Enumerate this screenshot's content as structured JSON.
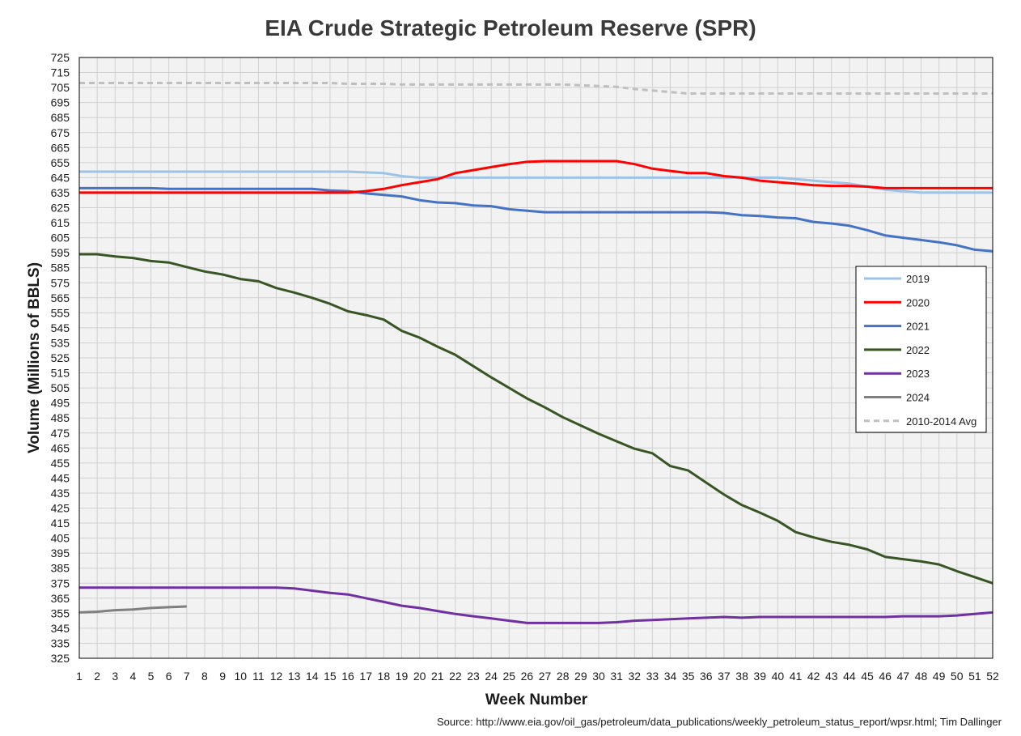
{
  "chart_data": {
    "type": "line",
    "title": "EIA Crude Strategic Petroleum Reserve (SPR)",
    "xlabel": "Week Number",
    "ylabel": "Volume (Millions of BBLS)",
    "source": "Source: http://www.eia.gov/oil_gas/petroleum/data_publications/weekly_petroleum_status_report/wpsr.html; Tim Dallinger",
    "xlim": [
      1,
      52
    ],
    "ylim": [
      325,
      725
    ],
    "ytick_step": 10,
    "grid": true,
    "legend_position": "right",
    "x": [
      1,
      2,
      3,
      4,
      5,
      6,
      7,
      8,
      9,
      10,
      11,
      12,
      13,
      14,
      15,
      16,
      17,
      18,
      19,
      20,
      21,
      22,
      23,
      24,
      25,
      26,
      27,
      28,
      29,
      30,
      31,
      32,
      33,
      34,
      35,
      36,
      37,
      38,
      39,
      40,
      41,
      42,
      43,
      44,
      45,
      46,
      47,
      48,
      49,
      50,
      51,
      52
    ],
    "series": [
      {
        "name": "2019",
        "color": "#9dc3e6",
        "dash": false,
        "values": [
          649,
          649,
          649,
          649,
          649,
          649,
          649,
          649,
          649,
          649,
          649,
          649,
          649,
          649,
          649,
          649,
          648.5,
          648,
          646,
          645,
          645,
          645,
          645,
          645,
          645,
          645,
          645,
          645,
          645,
          645,
          645,
          645,
          645,
          645,
          645,
          645,
          645,
          645,
          645,
          645,
          644,
          643,
          642,
          641,
          639,
          637,
          636,
          635,
          635,
          635,
          635,
          635
        ]
      },
      {
        "name": "2020",
        "color": "#ff0000",
        "dash": false,
        "values": [
          635,
          635,
          635,
          635,
          635,
          635,
          635,
          635,
          635,
          635,
          635,
          635,
          635,
          635,
          635,
          635,
          636,
          637.5,
          640,
          642,
          644,
          648,
          650,
          652,
          654,
          655.5,
          656,
          656,
          656,
          656,
          656,
          654,
          651,
          649.5,
          648,
          648,
          646,
          645,
          643,
          642,
          641,
          640,
          639.5,
          639.5,
          639,
          638,
          638,
          638,
          638,
          638,
          638,
          638
        ]
      },
      {
        "name": "2021",
        "color": "#4472c4",
        "dash": false,
        "values": [
          638,
          638,
          638,
          638,
          638,
          637.5,
          637.5,
          637.5,
          637.5,
          637.5,
          637.5,
          637.5,
          637.5,
          637.5,
          636.5,
          636,
          634.5,
          633.5,
          632.5,
          630,
          628.5,
          628,
          626.5,
          626,
          624,
          623,
          622,
          622,
          622,
          622,
          622,
          622,
          622,
          622,
          622,
          622,
          621.5,
          620,
          619.5,
          618.5,
          618,
          615.5,
          614.5,
          613,
          610,
          606.5,
          605,
          603.5,
          602,
          600,
          597,
          596
        ]
      },
      {
        "name": "2022",
        "color": "#375623",
        "dash": false,
        "values": [
          594,
          594,
          592.5,
          591.5,
          589.5,
          588.5,
          585.5,
          582.5,
          580.5,
          577.5,
          576,
          571.5,
          568.5,
          565,
          561,
          556,
          553.5,
          550.5,
          543,
          538.5,
          532.5,
          527,
          519.5,
          512,
          505,
          498,
          492,
          485.5,
          480,
          474.5,
          469.5,
          464.5,
          461.5,
          453,
          450,
          442,
          434,
          427,
          422,
          416.5,
          409,
          405.5,
          402.5,
          400.5,
          397.5,
          392.5,
          391,
          389.5,
          387.5,
          383,
          379,
          375
        ]
      },
      {
        "name": "2023",
        "color": "#7030a0",
        "dash": false,
        "values": [
          372,
          372,
          372,
          372,
          372,
          372,
          372,
          372,
          372,
          372,
          372,
          372,
          371.5,
          370,
          368.5,
          367.5,
          365,
          362.5,
          360,
          358.5,
          356.5,
          354.5,
          353,
          351.5,
          350,
          348.5,
          348.5,
          348.5,
          348.5,
          348.5,
          349,
          350,
          350.5,
          351,
          351.5,
          352,
          352.5,
          352,
          352.5,
          352.5,
          352.5,
          352.5,
          352.5,
          352.5,
          352.5,
          352.5,
          353,
          353,
          353,
          353.5,
          354.5,
          355.5
        ]
      },
      {
        "name": "2024",
        "color": "#7f7f7f",
        "dash": false,
        "values": [
          355.5,
          356,
          357,
          357.5,
          358.5,
          359,
          359.5,
          null,
          null,
          null,
          null,
          null,
          null,
          null,
          null,
          null,
          null,
          null,
          null,
          null,
          null,
          null,
          null,
          null,
          null,
          null,
          null,
          null,
          null,
          null,
          null,
          null,
          null,
          null,
          null,
          null,
          null,
          null,
          null,
          null,
          null,
          null,
          null,
          null,
          null,
          null,
          null,
          null,
          null,
          null,
          null,
          null
        ]
      },
      {
        "name": "2010-2014 Avg",
        "color": "#bfbfbf",
        "dash": true,
        "values": [
          708,
          708,
          708,
          708,
          708,
          708,
          708,
          708,
          708,
          708,
          708,
          708,
          708,
          708,
          708,
          707.5,
          707.5,
          707.5,
          707,
          707,
          707,
          707,
          707,
          707,
          707,
          707,
          707,
          707,
          706.5,
          706,
          705.5,
          704,
          703,
          702,
          701,
          701,
          701,
          701,
          701,
          701,
          701,
          701,
          701,
          701,
          701,
          701,
          701,
          701,
          701,
          701,
          701,
          701
        ]
      }
    ]
  }
}
